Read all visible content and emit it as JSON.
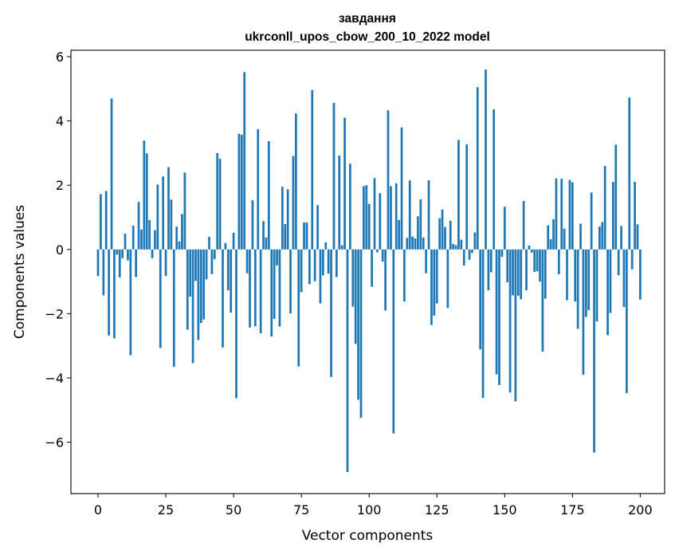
{
  "chart_data": {
    "type": "bar",
    "title": "завдання",
    "subtitle": "ukrconll_upos_cbow_200_10_2022 model",
    "xlabel": "Vector components",
    "ylabel": "Components values",
    "xlim": [
      -10,
      209
    ],
    "ylim": [
      -7.6,
      6.2
    ],
    "xticks": [
      0,
      25,
      50,
      75,
      100,
      125,
      150,
      175,
      200
    ],
    "yticks": [
      -6,
      -4,
      -2,
      0,
      2,
      4,
      6
    ],
    "ytick_labels": [
      "−6",
      "−4",
      "−2",
      "0",
      "2",
      "4",
      "6"
    ],
    "bar_color": "#1f77b4",
    "grid": false,
    "values": [
      -0.83,
      1.72,
      -1.43,
      1.82,
      -2.68,
      4.7,
      -2.77,
      -0.16,
      -0.87,
      -0.27,
      0.49,
      -0.34,
      -3.29,
      0.74,
      -0.86,
      1.48,
      0.62,
      3.39,
      2.99,
      0.91,
      -0.27,
      0.6,
      2.02,
      -3.07,
      2.27,
      -0.82,
      2.56,
      1.55,
      -3.65,
      0.71,
      0.25,
      1.1,
      2.39,
      -2.5,
      -1.47,
      -3.54,
      -0.98,
      -2.82,
      -2.29,
      -2.18,
      -0.93,
      0.39,
      -0.77,
      -0.3,
      3.0,
      2.82,
      -3.05,
      0.2,
      -1.27,
      -1.97,
      0.52,
      -4.63,
      3.6,
      3.57,
      5.52,
      -0.74,
      -2.43,
      1.53,
      -2.39,
      3.74,
      -2.61,
      0.88,
      0.37,
      3.37,
      -2.71,
      -2.16,
      -0.5,
      -2.4,
      1.95,
      0.79,
      1.87,
      -1.99,
      2.91,
      4.23,
      -3.64,
      -1.33,
      0.84,
      0.84,
      -1.08,
      4.96,
      -0.99,
      1.38,
      -1.68,
      -0.81,
      0.22,
      -0.75,
      -3.97,
      4.56,
      -0.86,
      2.92,
      0.13,
      4.1,
      -6.93,
      2.67,
      -1.78,
      -2.94,
      -4.68,
      -5.24,
      1.97,
      2.0,
      1.42,
      -1.16,
      2.22,
      -0.09,
      1.75,
      -0.38,
      -1.9,
      4.33,
      1.97,
      -5.73,
      2.06,
      0.92,
      3.8,
      -1.62,
      0.36,
      2.15,
      0.4,
      0.34,
      1.03,
      1.56,
      0.37,
      -0.74,
      2.15,
      -2.35,
      -2.06,
      -1.68,
      0.97,
      1.24,
      0.7,
      -1.82,
      0.89,
      0.17,
      0.13,
      3.41,
      0.3,
      -0.5,
      3.27,
      -0.32,
      -0.11,
      0.53,
      5.05,
      -3.11,
      -4.62,
      5.6,
      -1.27,
      -0.71,
      4.36,
      -3.89,
      -4.22,
      -0.23,
      1.33,
      -1.02,
      -4.45,
      -1.43,
      -4.73,
      -1.44,
      -1.55,
      1.51,
      -1.27,
      0.12,
      -0.1,
      -0.7,
      -0.68,
      -1.0,
      -3.18,
      -1.53,
      0.75,
      0.32,
      0.94,
      2.21,
      -0.77,
      2.2,
      0.65,
      -1.58,
      2.16,
      2.09,
      -1.62,
      -2.47,
      0.8,
      -3.9,
      -2.1,
      -1.89,
      1.77,
      -6.32,
      -2.24,
      0.71,
      0.85,
      2.6,
      -2.67,
      -1.98,
      2.1,
      3.26,
      -0.8,
      0.73,
      -1.79,
      -4.47,
      4.73,
      -0.62,
      2.1,
      0.78,
      -1.56
    ]
  }
}
